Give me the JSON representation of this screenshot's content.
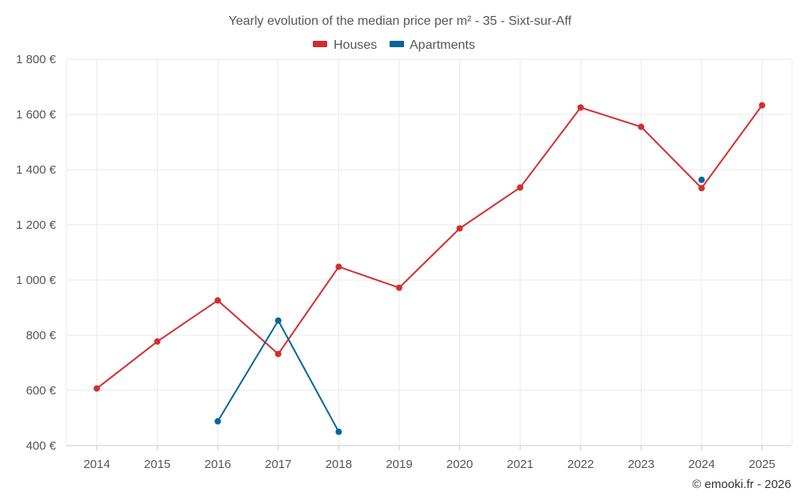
{
  "chart_data": {
    "type": "line",
    "title": "Yearly evolution of the median price per m² - 35 - Sixt-sur-Aff",
    "xlabel": "",
    "ylabel": "",
    "x": [
      "2014",
      "2015",
      "2016",
      "2017",
      "2018",
      "2019",
      "2020",
      "2021",
      "2022",
      "2023",
      "2024",
      "2025"
    ],
    "ylim": [
      400,
      1800
    ],
    "yticks": [
      400,
      600,
      800,
      1000,
      1200,
      1400,
      1600,
      1800
    ],
    "ytick_labels": [
      "400 €",
      "600 €",
      "800 €",
      "1 000 €",
      "1 200 €",
      "1 400 €",
      "1 600 €",
      "1 800 €"
    ],
    "grid": true,
    "legend_position": "top-center",
    "series": [
      {
        "name": "Houses",
        "color": "#d32f2f",
        "values": [
          607,
          777,
          926,
          732,
          1048,
          972,
          1187,
          1335,
          1625,
          1555,
          1333,
          1633
        ]
      },
      {
        "name": "Apartments",
        "color": "#03669a",
        "values": [
          null,
          null,
          488,
          853,
          450,
          null,
          null,
          null,
          null,
          null,
          1363,
          null
        ]
      }
    ]
  },
  "credit": "© emooki.fr - 2026"
}
